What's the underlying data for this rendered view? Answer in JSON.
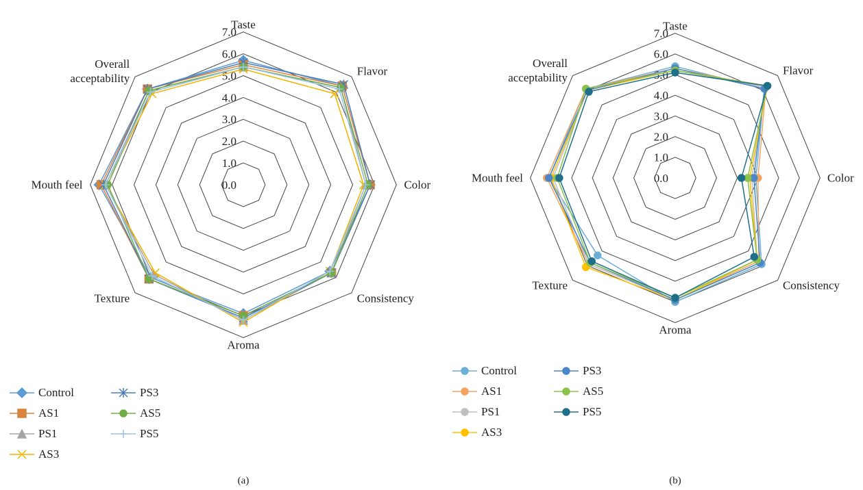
{
  "chart_data": [
    {
      "type": "radar",
      "caption": "(a)",
      "categories": [
        "Taste",
        "Flavor",
        "Color",
        "Consistency",
        "Aroma",
        "Texture",
        "Mouth feel",
        "Overall acceptability"
      ],
      "ylim": [
        0,
        7
      ],
      "yticks": [
        {
          "value": 0,
          "label": "0.0"
        },
        {
          "value": 1,
          "label": "1.0"
        },
        {
          "value": 2,
          "label": "2.0"
        },
        {
          "value": 3,
          "label": "3.0"
        },
        {
          "value": 4,
          "label": "4.0"
        },
        {
          "value": 5,
          "label": "5.0"
        },
        {
          "value": 6,
          "label": "6.0"
        },
        {
          "value": 7,
          "label": "7.0"
        }
      ],
      "series": [
        {
          "name": "Control",
          "color": "#5b9bd5",
          "marker": "diamond",
          "values": [
            5.7,
            6.4,
            5.8,
            5.6,
            5.9,
            6.0,
            6.6,
            6.2
          ]
        },
        {
          "name": "AS1",
          "color": "#d9823b",
          "marker": "square",
          "values": [
            5.5,
            6.4,
            5.8,
            5.7,
            6.0,
            6.1,
            6.5,
            6.2
          ]
        },
        {
          "name": "PS1",
          "color": "#a5a5a5",
          "marker": "triangle",
          "values": [
            5.4,
            6.3,
            5.6,
            5.7,
            6.2,
            5.8,
            6.3,
            6.1
          ]
        },
        {
          "name": "AS3",
          "color": "#f0b400",
          "marker": "x",
          "values": [
            5.3,
            5.9,
            5.5,
            5.6,
            6.3,
            5.7,
            6.3,
            5.9
          ]
        },
        {
          "name": "PS3",
          "color": "#4a7ebb",
          "marker": "star",
          "values": [
            5.6,
            6.5,
            5.8,
            5.7,
            6.1,
            6.1,
            6.4,
            6.2
          ]
        },
        {
          "name": "AS5",
          "color": "#70ad47",
          "marker": "circle",
          "values": [
            5.4,
            6.3,
            5.7,
            5.7,
            6.0,
            6.1,
            6.2,
            6.1
          ]
        },
        {
          "name": "PS5",
          "color": "#9dc3e6",
          "marker": "plus",
          "values": [
            5.4,
            6.2,
            5.6,
            5.6,
            6.2,
            5.9,
            6.3,
            6.0
          ]
        }
      ]
    },
    {
      "type": "radar",
      "caption": "(b)",
      "categories": [
        "Taste",
        "Flavor",
        "Color",
        "Consistency",
        "Aroma",
        "Texture",
        "Mouth feel",
        "Overall acceptability"
      ],
      "ylim": [
        0,
        7
      ],
      "yticks": [
        {
          "value": 0,
          "label": "0.0"
        },
        {
          "value": 1,
          "label": "1.0"
        },
        {
          "value": 2,
          "label": "2.0"
        },
        {
          "value": 3,
          "label": "3.0"
        },
        {
          "value": 4,
          "label": "4.0"
        },
        {
          "value": 5,
          "label": "5.0"
        },
        {
          "value": 6,
          "label": "6.0"
        },
        {
          "value": 7,
          "label": "7.0"
        }
      ],
      "series": [
        {
          "name": "Control",
          "color": "#6baed6",
          "marker": "circle",
          "values": [
            5.4,
            6.1,
            3.9,
            5.9,
            6.0,
            5.3,
            6.1,
            6.1
          ]
        },
        {
          "name": "AS1",
          "color": "#f4a460",
          "marker": "circle",
          "values": [
            5.3,
            6.2,
            4.0,
            5.7,
            5.9,
            5.9,
            6.2,
            6.1
          ]
        },
        {
          "name": "PS1",
          "color": "#bfbfbf",
          "marker": "circle",
          "values": [
            5.2,
            6.2,
            3.7,
            5.6,
            5.9,
            5.9,
            5.9,
            6.0
          ]
        },
        {
          "name": "AS3",
          "color": "#ffc000",
          "marker": "circle",
          "values": [
            5.2,
            6.3,
            3.6,
            5.6,
            5.9,
            6.1,
            6.0,
            6.0
          ]
        },
        {
          "name": "PS3",
          "color": "#4a86c8",
          "marker": "circle",
          "values": [
            5.3,
            6.1,
            3.8,
            5.8,
            5.9,
            5.8,
            6.1,
            6.0
          ]
        },
        {
          "name": "AS5",
          "color": "#8bc34a",
          "marker": "circle",
          "values": [
            5.2,
            6.3,
            3.5,
            5.6,
            5.8,
            5.8,
            5.7,
            6.1
          ]
        },
        {
          "name": "PS5",
          "color": "#1f6f8b",
          "marker": "circle",
          "values": [
            5.1,
            6.3,
            3.2,
            5.4,
            5.8,
            5.7,
            5.6,
            5.9
          ]
        }
      ]
    }
  ]
}
